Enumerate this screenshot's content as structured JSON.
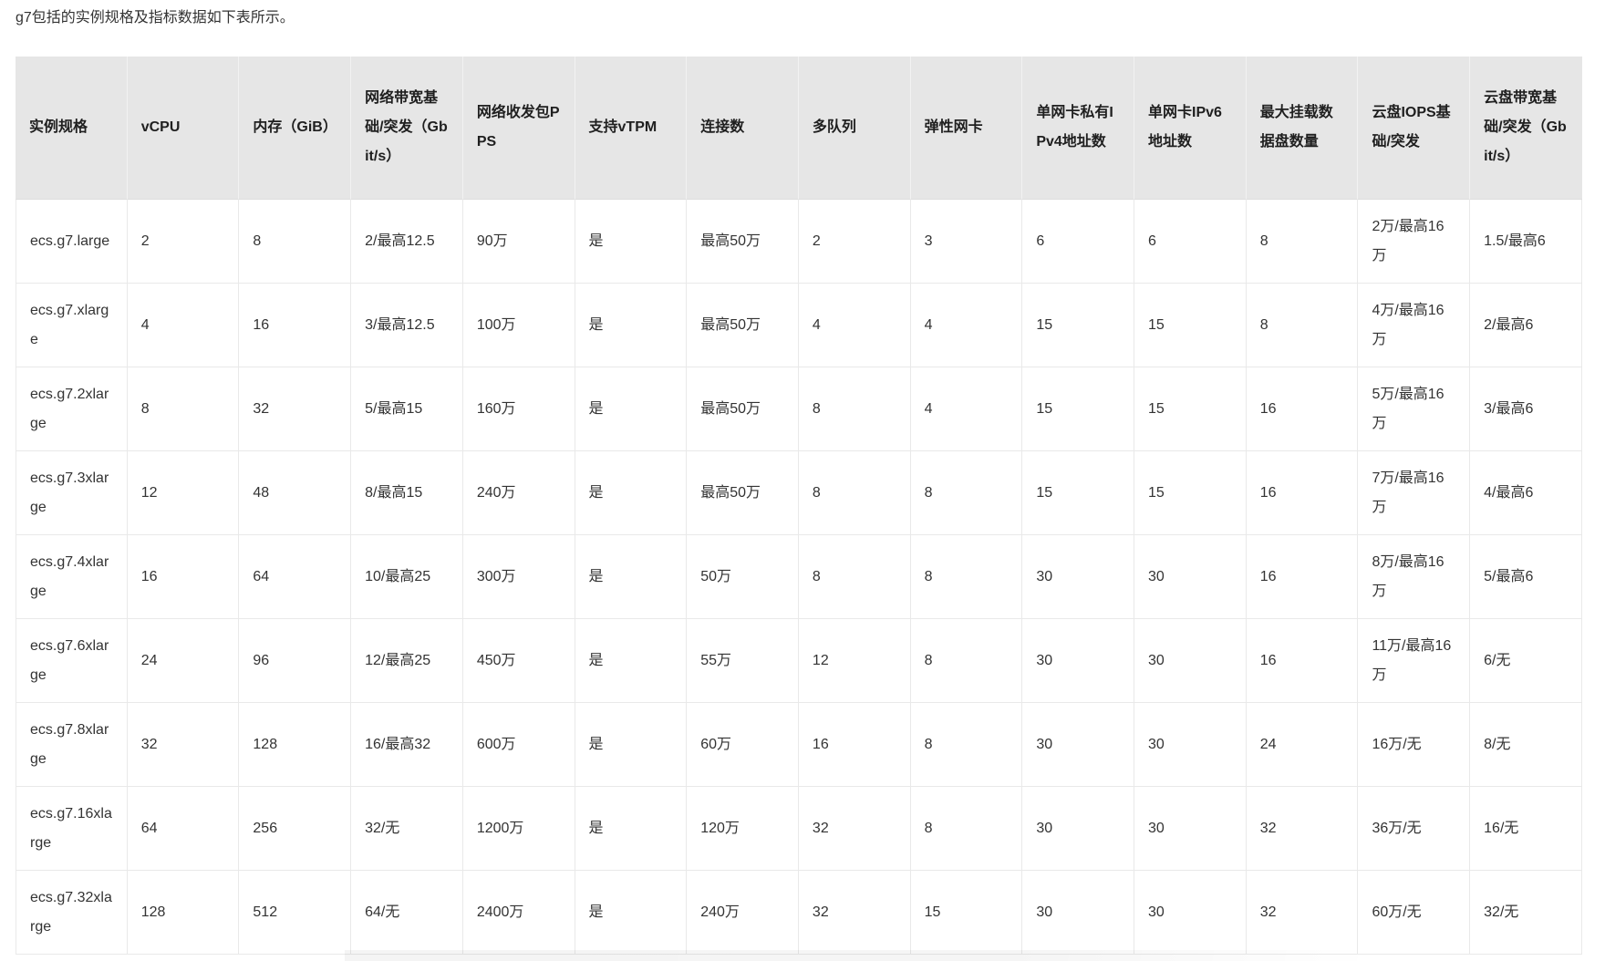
{
  "page": {
    "intro": "g7包括的实例规格及指标数据如下表所示。"
  },
  "colors": {
    "header_bg": "#e6e6e6",
    "header_text": "#1f1f1f",
    "text": "#333333",
    "border": "#e9e9e9"
  },
  "table": {
    "columns": [
      "实例规格",
      "vCPU",
      "内存（GiB）",
      "网络带宽基础/突发（Gbit/s）",
      "网络收发包PPS",
      "支持vTPM",
      "连接数",
      "多队列",
      "弹性网卡",
      "单网卡私有IPv4地址数",
      "单网卡IPv6地址数",
      "最大挂载数据盘数量",
      "云盘IOPS基础/突发",
      "云盘带宽基础/突发（Gbit/s）"
    ],
    "rows": [
      [
        "ecs.g7.large",
        "2",
        "8",
        "2/最高12.5",
        "90万",
        "是",
        "最高50万",
        "2",
        "3",
        "6",
        "6",
        "8",
        "2万/最高16万",
        "1.5/最高6"
      ],
      [
        "ecs.g7.xlarge",
        "4",
        "16",
        "3/最高12.5",
        "100万",
        "是",
        "最高50万",
        "4",
        "4",
        "15",
        "15",
        "8",
        "4万/最高16万",
        "2/最高6"
      ],
      [
        "ecs.g7.2xlarge",
        "8",
        "32",
        "5/最高15",
        "160万",
        "是",
        "最高50万",
        "8",
        "4",
        "15",
        "15",
        "16",
        "5万/最高16万",
        "3/最高6"
      ],
      [
        "ecs.g7.3xlarge",
        "12",
        "48",
        "8/最高15",
        "240万",
        "是",
        "最高50万",
        "8",
        "8",
        "15",
        "15",
        "16",
        "7万/最高16万",
        "4/最高6"
      ],
      [
        "ecs.g7.4xlarge",
        "16",
        "64",
        "10/最高25",
        "300万",
        "是",
        "50万",
        "8",
        "8",
        "30",
        "30",
        "16",
        "8万/最高16万",
        "5/最高6"
      ],
      [
        "ecs.g7.6xlarge",
        "24",
        "96",
        "12/最高25",
        "450万",
        "是",
        "55万",
        "12",
        "8",
        "30",
        "30",
        "16",
        "11万/最高16万",
        "6/无"
      ],
      [
        "ecs.g7.8xlarge",
        "32",
        "128",
        "16/最高32",
        "600万",
        "是",
        "60万",
        "16",
        "8",
        "30",
        "30",
        "24",
        "16万/无",
        "8/无"
      ],
      [
        "ecs.g7.16xlarge",
        "64",
        "256",
        "32/无",
        "1200万",
        "是",
        "120万",
        "32",
        "8",
        "30",
        "30",
        "32",
        "36万/无",
        "16/无"
      ],
      [
        "ecs.g7.32xlarge",
        "128",
        "512",
        "64/无",
        "2400万",
        "是",
        "240万",
        "32",
        "15",
        "30",
        "30",
        "32",
        "60万/无",
        "32/无"
      ]
    ]
  }
}
